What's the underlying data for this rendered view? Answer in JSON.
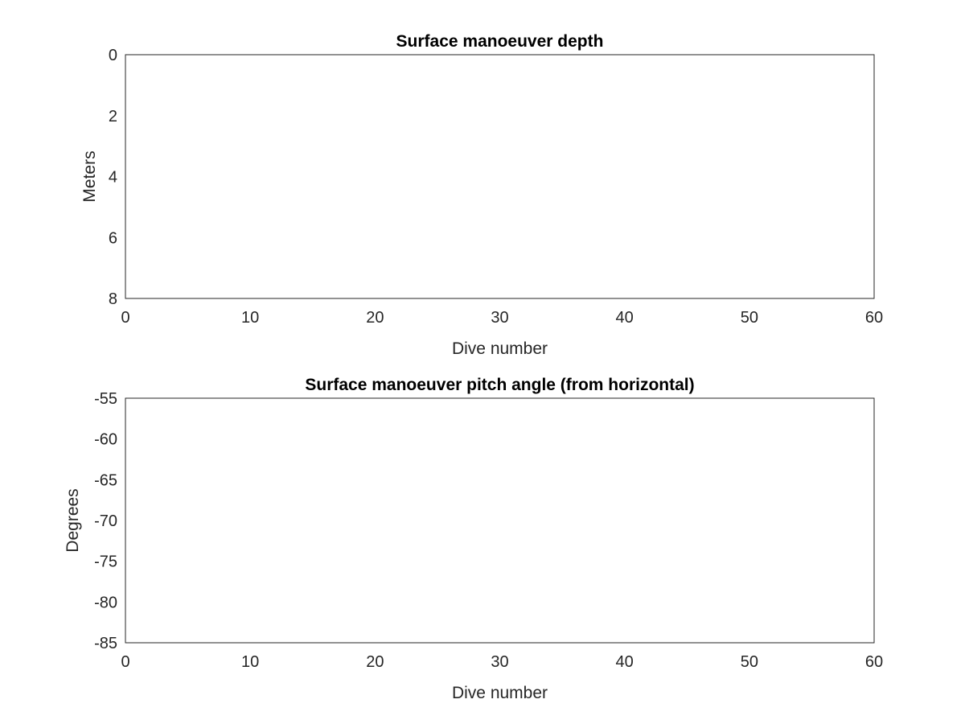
{
  "chart_data": [
    {
      "type": "line",
      "title": "Surface manoeuver depth",
      "xlabel": "Dive number",
      "ylabel": "Meters",
      "xlim": [
        0,
        60
      ],
      "ylim": [
        0,
        8
      ],
      "y_reversed": true,
      "grid": true,
      "xticks": [
        "0",
        "10",
        "20",
        "30",
        "40",
        "50",
        "60"
      ],
      "yticks": [
        "0",
        "2",
        "4",
        "6",
        "8"
      ],
      "series": [
        {
          "color": "#000000",
          "x": [
            1,
            2,
            3,
            4,
            5,
            6,
            7,
            8,
            9,
            10,
            11,
            12,
            13,
            14,
            15,
            16,
            17,
            18,
            19,
            20,
            21,
            22,
            23,
            24,
            25,
            26,
            27,
            28,
            29,
            30,
            31,
            32,
            33,
            34,
            35,
            36,
            37,
            38,
            39,
            40,
            41,
            42,
            43,
            44,
            45,
            46,
            47,
            48,
            49,
            50,
            51,
            52
          ],
          "y": [
            3.95,
            4.05,
            4.05,
            4.05,
            4.05,
            3.98,
            3.9,
            3.9,
            4.95,
            5.95,
            3.88,
            5.75,
            5.65,
            5.55,
            5.35,
            3.85,
            5.8,
            6.15,
            6.7,
            6.2,
            3.8,
            6.35,
            5.55,
            5.05,
            5.65,
            3.8,
            6.45,
            6.2,
            6.3,
            6.25,
            4.2,
            4.2,
            5.1,
            4.5,
            4.78,
            4.82,
            4.85,
            4.88,
            4.93,
            4.97,
            4.25,
            5.2,
            4.35,
            5.6,
            4.45,
            4.25,
            3.5,
            4.55,
            4.45,
            4.6,
            4.3,
            5.95
          ]
        },
        {
          "color": "#00cc00",
          "x": [
            1,
            52
          ],
          "y": [
            1.3,
            1.3
          ]
        }
      ]
    },
    {
      "type": "line",
      "title": "Surface manoeuver pitch angle (from horizontal)",
      "xlabel": "Dive number",
      "ylabel": "Degrees",
      "xlim": [
        0,
        60
      ],
      "ylim": [
        -85,
        -55
      ],
      "grid": true,
      "xticks": [
        "0",
        "10",
        "20",
        "30",
        "40",
        "50",
        "60"
      ],
      "yticks": [
        "-55",
        "-60",
        "-65",
        "-70",
        "-75",
        "-80",
        "-85"
      ],
      "series": [
        {
          "color": "#000000",
          "x": [
            1,
            2,
            3,
            4,
            5,
            6,
            7,
            7.5,
            7.8,
            8.2,
            8.35,
            8.6,
            10.6,
            10.9,
            11.0,
            11.2,
            11.4,
            15.6,
            15.8,
            16.0,
            16.2,
            16.4,
            20.6,
            20.8,
            21.0,
            21.2,
            21.4,
            25.6,
            25.8,
            26.0,
            26.2,
            26.4,
            30.6,
            30.8,
            31.0,
            31.2,
            31.4,
            40.6,
            40.8,
            41.0,
            41.2,
            41.4,
            45.6,
            45.8,
            46.0,
            46.2,
            46.4,
            50.6,
            50.8,
            51.0,
            51.2,
            51.4
          ],
          "y": [
            -62.8,
            -63.3,
            -64.5,
            -65.1,
            -66.1,
            -65.3,
            -66.4,
            -66.4,
            -66.3,
            -60.0,
            -55.0,
            null,
            -55.0,
            -57.2,
            -66.3,
            -57.3,
            -55.0,
            -55.0,
            -57.5,
            -65.0,
            -57.3,
            -55.0,
            -55.0,
            -57.5,
            -66.3,
            -57.5,
            -55.0,
            -55.0,
            -57.5,
            -66.5,
            -57.5,
            -55.0,
            -55.0,
            -57.3,
            -65.8,
            -57.3,
            -55.0,
            -55.0,
            -57.5,
            -65.3,
            -57.5,
            -55.0,
            -55.0,
            -57.5,
            -65.0,
            -57.5,
            -55.0,
            -55.0,
            -57.5,
            -65.8,
            -57.5,
            -55.0
          ]
        },
        {
          "color": "#00cc00",
          "x": [
            1,
            52
          ],
          "y": [
            -70,
            -70
          ]
        }
      ]
    }
  ]
}
